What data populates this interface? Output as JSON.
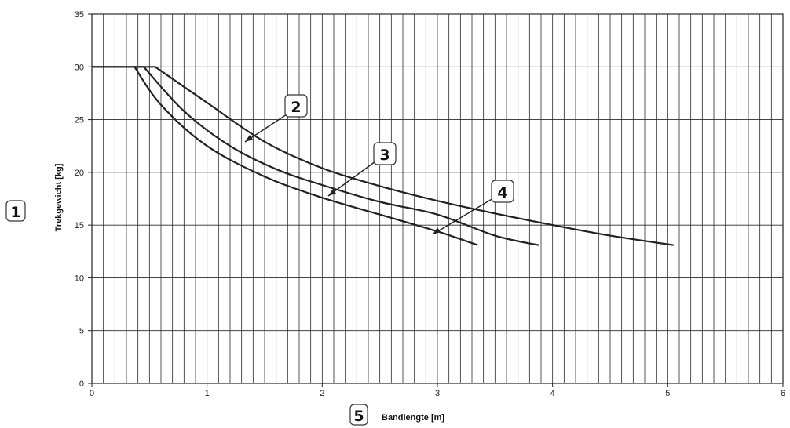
{
  "chart_data": {
    "type": "line",
    "xlabel": "Bandlengte [m]",
    "ylabel": "Trekgewicht [kg]",
    "xlim": [
      0,
      6
    ],
    "ylim": [
      0,
      35
    ],
    "x_ticks": [
      0,
      1,
      2,
      3,
      4,
      5,
      6
    ],
    "y_ticks": [
      0,
      5,
      10,
      15,
      20,
      25,
      30,
      35
    ],
    "grid": true,
    "line_color": "#222222",
    "series": [
      {
        "label": "2",
        "points": [
          [
            0,
            30
          ],
          [
            0.55,
            30
          ],
          [
            1,
            26.6
          ],
          [
            1.5,
            22.9
          ],
          [
            2,
            20.4
          ],
          [
            2.5,
            18.7
          ],
          [
            3,
            17.3
          ],
          [
            3.5,
            16.1
          ],
          [
            4,
            15.0
          ],
          [
            4.5,
            14.0
          ],
          [
            5.05,
            13.1
          ]
        ]
      },
      {
        "label": "3",
        "points": [
          [
            0,
            30
          ],
          [
            0.45,
            30
          ],
          [
            0.8,
            25.8
          ],
          [
            1.2,
            22.5
          ],
          [
            1.6,
            20.3
          ],
          [
            2,
            18.8
          ],
          [
            2.5,
            17.2
          ],
          [
            3,
            16.0
          ],
          [
            3.5,
            14.0
          ],
          [
            3.88,
            13.1
          ]
        ]
      },
      {
        "label": "4",
        "points": [
          [
            0.37,
            30
          ],
          [
            0.6,
            26.4
          ],
          [
            1,
            22.5
          ],
          [
            1.5,
            19.6
          ],
          [
            2,
            17.6
          ],
          [
            2.5,
            16.0
          ],
          [
            3,
            14.4
          ],
          [
            3.35,
            13.1
          ]
        ]
      }
    ],
    "annotations": [
      {
        "label": "1"
      },
      {
        "label": "2"
      },
      {
        "label": "3"
      },
      {
        "label": "4"
      },
      {
        "label": "5"
      }
    ]
  }
}
